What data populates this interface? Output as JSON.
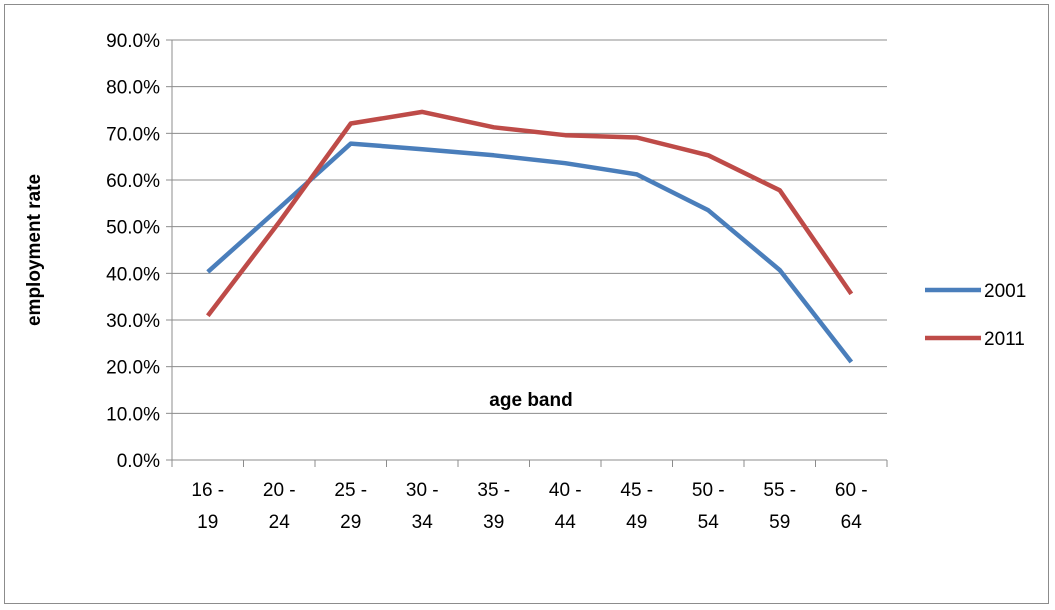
{
  "chart_data": {
    "type": "line",
    "title": "",
    "xlabel": "age band",
    "ylabel": "employment rate",
    "categories": [
      [
        "16 -",
        "19"
      ],
      [
        "20 -",
        "24"
      ],
      [
        "25 -",
        "29"
      ],
      [
        "30 -",
        "34"
      ],
      [
        "35 -",
        "39"
      ],
      [
        "40 -",
        "44"
      ],
      [
        "45 -",
        "49"
      ],
      [
        "50 -",
        "54"
      ],
      [
        "55 -",
        "59"
      ],
      [
        "60 -",
        "64"
      ]
    ],
    "ylim": [
      0,
      90
    ],
    "yticks": [
      0,
      10,
      20,
      30,
      40,
      50,
      60,
      70,
      80,
      90
    ],
    "ytick_labels": [
      "0.0%",
      "10.0%",
      "20.0%",
      "30.0%",
      "40.0%",
      "50.0%",
      "60.0%",
      "70.0%",
      "80.0%",
      "90.0%"
    ],
    "grid": "horizontal",
    "legend_position": "right",
    "series": [
      {
        "name": "2001",
        "color": "#4a7ebb",
        "values": [
          40.3,
          54.0,
          67.8,
          66.6,
          65.3,
          63.6,
          61.2,
          53.5,
          40.7,
          21.0
        ]
      },
      {
        "name": "2011",
        "color": "#be4b48",
        "values": [
          30.9,
          51.0,
          72.1,
          74.6,
          71.3,
          69.6,
          69.1,
          65.3,
          57.8,
          35.6
        ]
      }
    ]
  }
}
